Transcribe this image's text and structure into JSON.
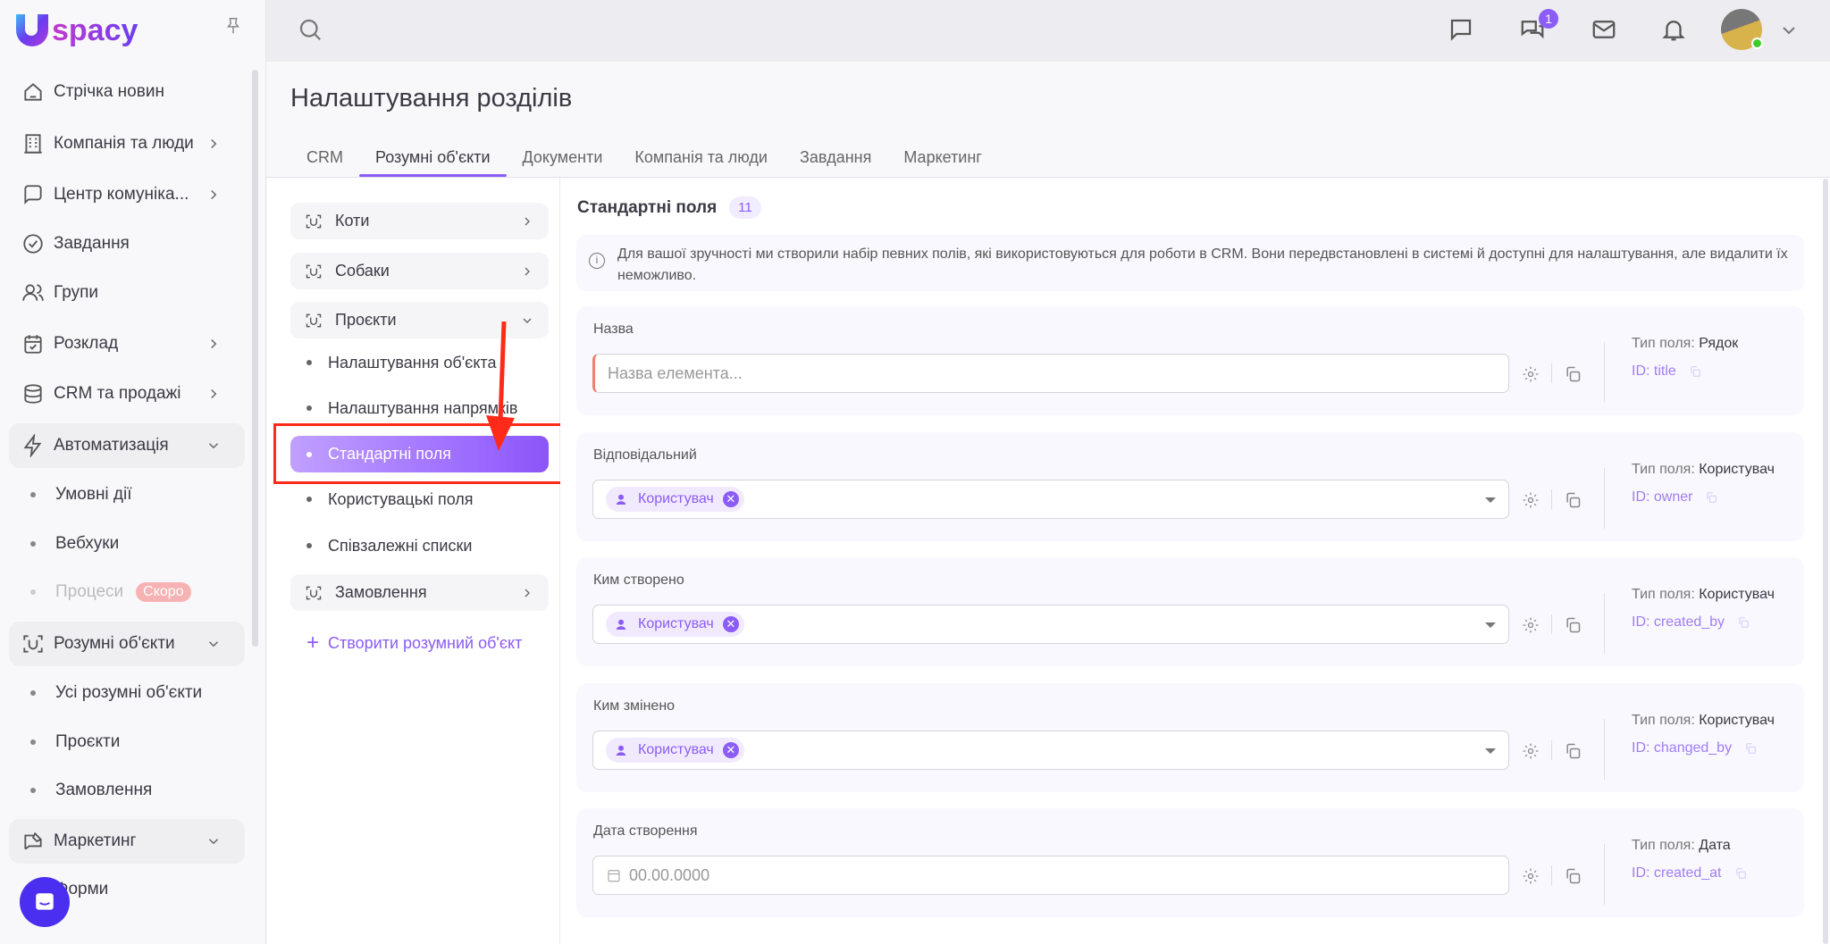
{
  "app": {
    "logo": "Uspacy",
    "brand_color": "#8b5cf6"
  },
  "sidebar": {
    "items": [
      {
        "label": "Стрічка новин",
        "icon": "home-icon",
        "type": "item"
      },
      {
        "label": "Компанія та люди",
        "icon": "building-icon",
        "type": "item",
        "chevron": "right"
      },
      {
        "label": "Центр комуніка...",
        "icon": "communication-icon",
        "type": "item",
        "chevron": "right"
      },
      {
        "label": "Завдання",
        "icon": "check-circle-icon",
        "type": "item"
      },
      {
        "label": "Групи",
        "icon": "users-icon",
        "type": "item"
      },
      {
        "label": "Розклад",
        "icon": "calendar-icon",
        "type": "item",
        "chevron": "right"
      },
      {
        "label": "CRM та продажі",
        "icon": "database-icon",
        "type": "item",
        "chevron": "right"
      },
      {
        "label": "Автоматизація",
        "icon": "lightning-icon",
        "type": "group",
        "chevron": "down"
      },
      {
        "label": "Умовні дії",
        "type": "sub"
      },
      {
        "label": "Вебхуки",
        "type": "sub"
      },
      {
        "label": "Процеси",
        "type": "sub-disabled",
        "badge": "Скоро"
      },
      {
        "label": "Розумні об'єкти",
        "icon": "smart-object-icon",
        "type": "group",
        "chevron": "down"
      },
      {
        "label": "Усі розумні об'єкти",
        "type": "sub"
      },
      {
        "label": "Проєкти",
        "type": "sub"
      },
      {
        "label": "Замовлення",
        "type": "sub"
      },
      {
        "label": "Маркетинг",
        "icon": "marketing-icon",
        "type": "group",
        "chevron": "down"
      },
      {
        "label": "Форми",
        "type": "sub"
      }
    ]
  },
  "topbar": {
    "notifications_count": "1"
  },
  "page": {
    "title": "Налаштування розділів",
    "tabs": [
      {
        "label": "CRM"
      },
      {
        "label": "Розумні об'єкти",
        "active": true
      },
      {
        "label": "Документи"
      },
      {
        "label": "Компанія та люди"
      },
      {
        "label": "Завдання"
      },
      {
        "label": "Маркетинг"
      }
    ]
  },
  "left_panel": {
    "objects": [
      {
        "label": "Коти"
      },
      {
        "label": "Собаки"
      },
      {
        "label": "Проєкти",
        "expanded": true
      },
      {
        "label": "Замовлення"
      }
    ],
    "subitems": [
      "Налаштування об'єкта",
      "Налаштування напрямків",
      "Стандартні поля",
      "Користувацькі поля",
      "Співзалежні списки"
    ],
    "active": "Стандартні поля",
    "create_label": "Створити розумний об'єкт"
  },
  "main": {
    "section_title": "Стандартні поля",
    "count": "11",
    "info": "Для вашої зручності ми створили набір певних полів, які використовуються для роботи в CRM. Вони передвстановлені в системі й доступні для налаштування, але видалити їх неможливо.",
    "type_prefix": "Тип поля:",
    "fields": [
      {
        "label": "Назва",
        "kind": "text",
        "placeholder": "Назва елемента...",
        "type": "Рядок",
        "id": "ID: title"
      },
      {
        "label": "Відповідальний",
        "kind": "user",
        "chip": "Користувач",
        "type": "Користувач",
        "id": "ID: owner"
      },
      {
        "label": "Ким створено",
        "kind": "user",
        "chip": "Користувач",
        "type": "Користувач",
        "id": "ID: created_by"
      },
      {
        "label": "Ким змінено",
        "kind": "user",
        "chip": "Користувач",
        "type": "Користувач",
        "id": "ID: changed_by"
      },
      {
        "label": "Дата створення",
        "kind": "date",
        "placeholder": "00.00.0000",
        "type": "Дата",
        "id": "ID: created_at"
      }
    ]
  }
}
